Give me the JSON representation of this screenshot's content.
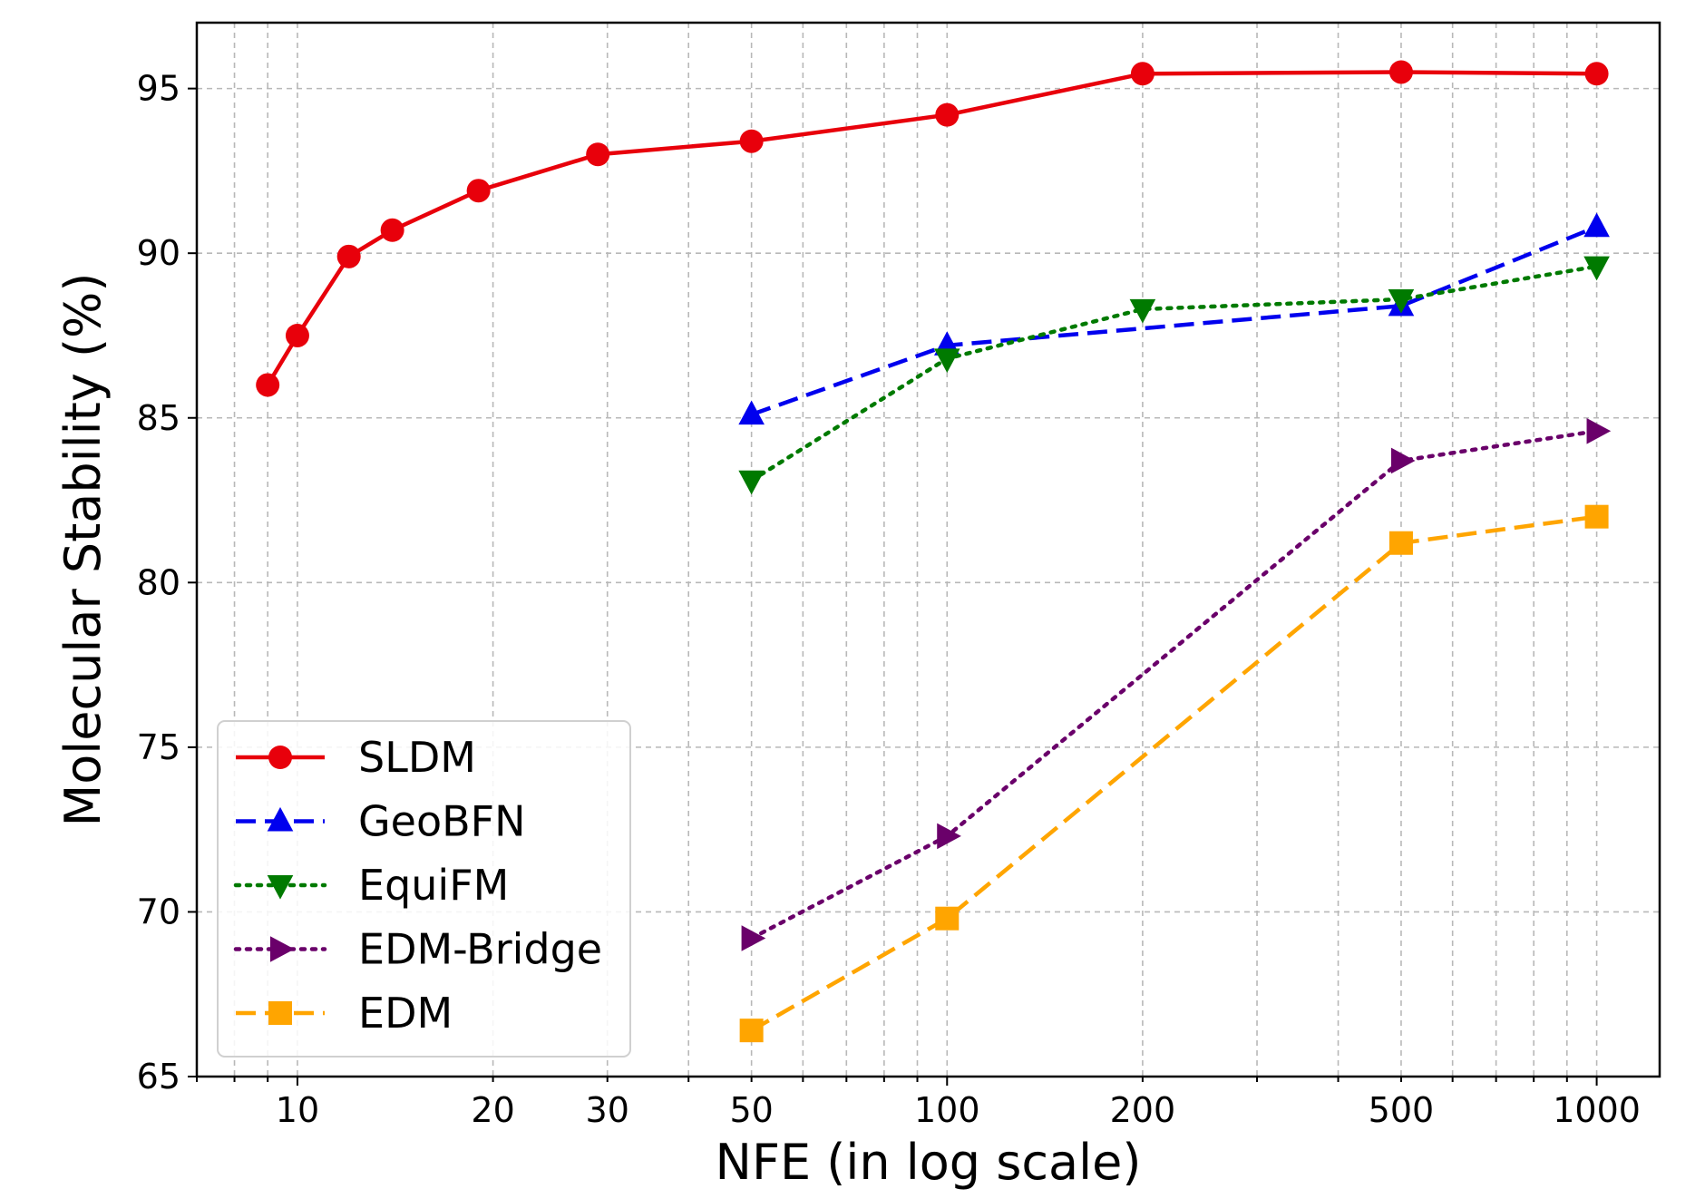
{
  "chart_data": {
    "type": "line",
    "title": "",
    "xlabel": "NFE (in log scale)",
    "ylabel": "Molecular Stability (%)",
    "x_scale": "log",
    "xlim": [
      7,
      1250
    ],
    "ylim": [
      65,
      97
    ],
    "x_ticks": [
      10,
      20,
      30,
      50,
      100,
      200,
      500,
      1000
    ],
    "x_tick_labels": [
      "10",
      "20",
      "30",
      "50",
      "100",
      "200",
      "500",
      "1000"
    ],
    "y_ticks": [
      65,
      70,
      75,
      80,
      85,
      90,
      95
    ],
    "y_tick_labels": [
      "65",
      "70",
      "75",
      "80",
      "85",
      "90",
      "95"
    ],
    "grid": true,
    "legend_position": "lower-left",
    "series": [
      {
        "name": "SLDM",
        "color": "#e8000b",
        "line_style": "solid",
        "marker": "circle",
        "x": [
          9,
          10,
          12,
          14,
          19,
          29,
          50,
          100,
          200,
          500,
          1000
        ],
        "y": [
          86.0,
          87.5,
          89.9,
          90.7,
          91.9,
          93.0,
          93.4,
          94.2,
          95.45,
          95.5,
          95.45
        ]
      },
      {
        "name": "GeoBFN",
        "color": "#0000ee",
        "line_style": "dashed",
        "marker": "triangle-up",
        "x": [
          50,
          100,
          500,
          1000
        ],
        "y": [
          85.1,
          87.2,
          88.4,
          90.8
        ]
      },
      {
        "name": "EquiFM",
        "color": "#007a00",
        "line_style": "dotted",
        "marker": "triangle-down",
        "x": [
          50,
          100,
          200,
          500,
          1000
        ],
        "y": [
          83.1,
          86.8,
          88.3,
          88.6,
          89.6
        ]
      },
      {
        "name": "EDM-Bridge",
        "color": "#6a006a",
        "line_style": "dotted",
        "marker": "triangle-right",
        "x": [
          50,
          100,
          500,
          1000
        ],
        "y": [
          69.2,
          72.3,
          83.7,
          84.6
        ]
      },
      {
        "name": "EDM",
        "color": "#ffa500",
        "line_style": "dashed",
        "marker": "square",
        "x": [
          50,
          100,
          500,
          1000
        ],
        "y": [
          66.4,
          69.8,
          81.2,
          82.0
        ]
      }
    ]
  }
}
